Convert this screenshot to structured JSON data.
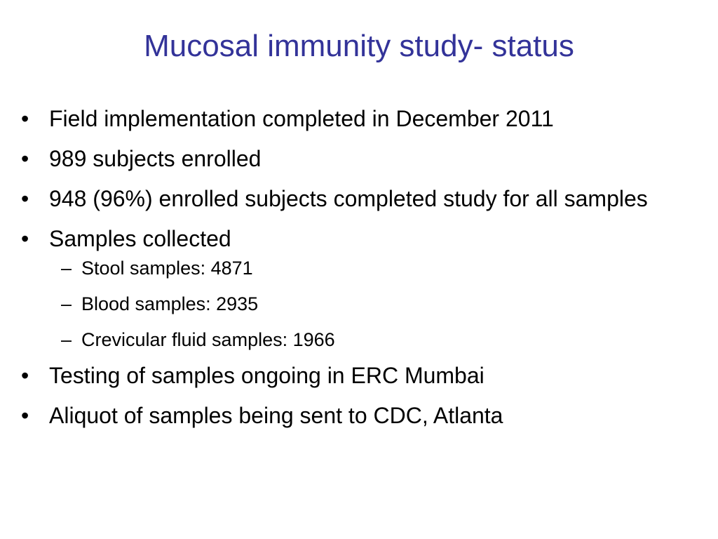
{
  "slide": {
    "title": "Mucosal immunity study- status",
    "title_color": "#333399",
    "text_color": "#000000",
    "bullet_marker": "•",
    "sub_marker": "–",
    "bullets": [
      {
        "text": "Field implementation completed in December 2011"
      },
      {
        "text": "989 subjects enrolled"
      },
      {
        "text": "948 (96%) enrolled subjects completed study for all samples"
      },
      {
        "text": "Samples collected",
        "sub": [
          "Stool samples: 4871",
          "Blood samples: 2935",
          "Crevicular fluid samples: 1966"
        ]
      },
      {
        "text": "Testing of samples ongoing in ERC Mumbai"
      },
      {
        "text": "Aliquot of samples being sent to CDC, Atlanta"
      }
    ]
  }
}
